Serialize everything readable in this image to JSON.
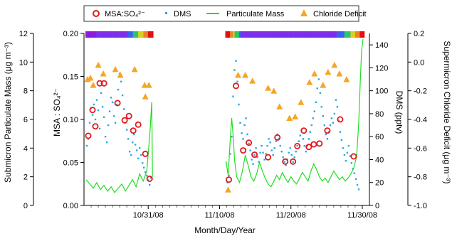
{
  "chart_data": {
    "type": "scatter",
    "xlabel": "Month/Day/Year",
    "x_ticks": [
      {
        "label": "10/31/08",
        "day": 31
      },
      {
        "label": "11/10/08",
        "day": 41
      },
      {
        "label": "11/20/08",
        "day": 51
      },
      {
        "label": "11/30/08",
        "day": 61
      }
    ],
    "x_range_days": [
      22,
      62
    ],
    "axes": {
      "left1": {
        "label": "Submicron Particulate Mass (μg m⁻³)",
        "range": [
          0,
          12
        ],
        "ticks": [
          "0",
          "2",
          "4",
          "6",
          "8",
          "10",
          "12"
        ]
      },
      "left2": {
        "label": "MSA : SO₄²⁻",
        "range": [
          0,
          0.2
        ],
        "ticks": [
          "0.00",
          "0.05",
          "0.10",
          "0.15",
          "0.20"
        ]
      },
      "right1": {
        "label": "DMS (pptv)",
        "range": [
          0,
          150
        ],
        "ticks": [
          "0",
          "20",
          "40",
          "60",
          "80",
          "100",
          "120",
          "140"
        ]
      },
      "right2": {
        "label": "Supermicron Chloride Deficit (μg m⁻³)",
        "range": [
          -1.0,
          0.2
        ],
        "ticks": [
          "-1.0",
          "-0.8",
          "-0.6",
          "-0.4",
          "-0.2",
          "0.0",
          "0.2"
        ]
      }
    },
    "legend": {
      "placement": "top",
      "entries": [
        {
          "label": "MSA:SO₄²⁻",
          "marker": "open-circle",
          "color": "#e0191c"
        },
        {
          "label": "DMS",
          "marker": "dot",
          "color": "#29a8e0"
        },
        {
          "label": "Particulate Mass",
          "marker": "line",
          "color": "#22dd22"
        },
        {
          "label": "Chloride Deficit",
          "marker": "triangle",
          "color": "#f5a623"
        }
      ]
    },
    "series": [
      {
        "name": "MSA:SO₄²⁻",
        "axis": "left2",
        "color": "#e0191c",
        "points": [
          [
            22.6,
            0.081
          ],
          [
            23.2,
            0.111
          ],
          [
            23.6,
            0.092
          ],
          [
            24.2,
            0.142
          ],
          [
            24.8,
            0.142
          ],
          [
            26.7,
            0.119
          ],
          [
            27.7,
            0.099
          ],
          [
            28.3,
            0.104
          ],
          [
            28.9,
            0.087
          ],
          [
            29.6,
            0.094
          ],
          [
            30.6,
            0.06
          ],
          [
            31.2,
            0.031
          ],
          [
            42.3,
            0.03
          ],
          [
            43.3,
            0.139
          ],
          [
            44.3,
            0.064
          ],
          [
            45.1,
            0.073
          ],
          [
            45.9,
            0.059
          ],
          [
            47.8,
            0.056
          ],
          [
            49.1,
            0.079
          ],
          [
            50.2,
            0.051
          ],
          [
            51.3,
            0.051
          ],
          [
            51.9,
            0.069
          ],
          [
            52.8,
            0.087
          ],
          [
            53.5,
            0.068
          ],
          [
            54.2,
            0.071
          ],
          [
            55.0,
            0.072
          ],
          [
            56.1,
            0.087
          ],
          [
            57.9,
            0.1
          ],
          [
            59.8,
            0.057
          ]
        ]
      },
      {
        "name": "Chloride Deficit",
        "axis": "right2",
        "color": "#f5a623",
        "points": [
          [
            22.5,
            -0.12
          ],
          [
            22.9,
            -0.11
          ],
          [
            23.3,
            -0.16
          ],
          [
            24.0,
            -0.02
          ],
          [
            24.7,
            -0.08
          ],
          [
            26.4,
            -0.05
          ],
          [
            27.1,
            -0.09
          ],
          [
            29.1,
            -0.05
          ],
          [
            30.5,
            -0.16
          ],
          [
            31.1,
            -0.16
          ],
          [
            30.6,
            -0.24
          ],
          [
            42.2,
            -0.89
          ],
          [
            43.6,
            -0.09
          ],
          [
            44.6,
            -0.09
          ],
          [
            45.6,
            -0.13
          ],
          [
            47.8,
            -0.18
          ],
          [
            48.6,
            -0.2
          ],
          [
            49.4,
            -0.31
          ],
          [
            50.8,
            -0.39
          ],
          [
            51.6,
            -0.38
          ],
          [
            52.4,
            -0.28
          ],
          [
            53.6,
            -0.14
          ],
          [
            54.3,
            -0.08
          ],
          [
            55.5,
            -0.16
          ],
          [
            56.2,
            -0.07
          ],
          [
            57.1,
            -0.02
          ],
          [
            57.8,
            -0.08
          ],
          [
            58.8,
            -0.12
          ]
        ]
      },
      {
        "name": "DMS",
        "axis": "right1",
        "color": "#29a8e0",
        "points": [
          [
            22.4,
            52
          ],
          [
            22.6,
            58
          ],
          [
            22.8,
            72
          ],
          [
            23.0,
            85
          ],
          [
            23.2,
            79
          ],
          [
            23.4,
            88
          ],
          [
            23.6,
            75
          ],
          [
            23.8,
            92
          ],
          [
            24.0,
            83
          ],
          [
            24.2,
            67
          ],
          [
            24.4,
            98
          ],
          [
            24.6,
            86
          ],
          [
            24.8,
            77
          ],
          [
            25.0,
            60
          ],
          [
            25.2,
            55
          ],
          [
            25.4,
            70
          ],
          [
            25.6,
            82
          ],
          [
            25.8,
            94
          ],
          [
            26.0,
            90
          ],
          [
            26.2,
            78
          ],
          [
            26.4,
            72
          ],
          [
            26.6,
            88
          ],
          [
            26.8,
            101
          ],
          [
            27.0,
            115
          ],
          [
            27.2,
            108
          ],
          [
            27.4,
            96
          ],
          [
            27.6,
            84
          ],
          [
            27.8,
            72
          ],
          [
            28.0,
            66
          ],
          [
            28.2,
            58
          ],
          [
            28.4,
            47
          ],
          [
            28.6,
            44
          ],
          [
            28.8,
            55
          ],
          [
            29.0,
            62
          ],
          [
            29.2,
            53
          ],
          [
            29.4,
            48
          ],
          [
            29.6,
            41
          ],
          [
            29.8,
            50
          ],
          [
            30.0,
            44
          ],
          [
            30.2,
            37
          ],
          [
            30.4,
            33
          ],
          [
            30.6,
            29
          ],
          [
            30.8,
            26
          ],
          [
            31.0,
            22
          ],
          [
            31.2,
            18
          ],
          [
            31.4,
            24
          ],
          [
            42.1,
            20
          ],
          [
            42.3,
            26
          ],
          [
            42.5,
            45
          ],
          [
            42.7,
            60
          ],
          [
            42.9,
            95
          ],
          [
            43.1,
            118
          ],
          [
            43.3,
            126
          ],
          [
            43.5,
            108
          ],
          [
            43.7,
            88
          ],
          [
            43.9,
            72
          ],
          [
            44.1,
            63
          ],
          [
            44.3,
            58
          ],
          [
            44.5,
            70
          ],
          [
            44.7,
            76
          ],
          [
            44.9,
            62
          ],
          [
            45.1,
            54
          ],
          [
            45.3,
            48
          ],
          [
            45.5,
            40
          ],
          [
            45.7,
            36
          ],
          [
            45.9,
            44
          ],
          [
            46.1,
            50
          ],
          [
            46.3,
            42
          ],
          [
            46.5,
            38
          ],
          [
            46.7,
            46
          ],
          [
            46.9,
            52
          ],
          [
            47.1,
            46
          ],
          [
            47.3,
            40
          ],
          [
            47.5,
            45
          ],
          [
            47.7,
            52
          ],
          [
            47.9,
            58
          ],
          [
            48.1,
            55
          ],
          [
            48.3,
            48
          ],
          [
            48.5,
            44
          ],
          [
            48.7,
            50
          ],
          [
            48.9,
            56
          ],
          [
            49.1,
            62
          ],
          [
            49.3,
            58
          ],
          [
            49.5,
            52
          ],
          [
            49.7,
            47
          ],
          [
            49.9,
            42
          ],
          [
            50.1,
            38
          ],
          [
            50.3,
            35
          ],
          [
            50.5,
            40
          ],
          [
            50.7,
            46
          ],
          [
            50.9,
            50
          ],
          [
            51.1,
            44
          ],
          [
            51.3,
            38
          ],
          [
            51.5,
            42
          ],
          [
            51.7,
            47
          ],
          [
            51.9,
            52
          ],
          [
            52.1,
            56
          ],
          [
            52.3,
            61
          ],
          [
            52.5,
            66
          ],
          [
            52.7,
            58
          ],
          [
            52.9,
            52
          ],
          [
            53.1,
            47
          ],
          [
            53.3,
            52
          ],
          [
            53.5,
            58
          ],
          [
            53.7,
            64
          ],
          [
            53.9,
            70
          ],
          [
            54.1,
            76
          ],
          [
            54.3,
            82
          ],
          [
            54.5,
            90
          ],
          [
            54.7,
            102
          ],
          [
            54.9,
            110
          ],
          [
            55.1,
            98
          ],
          [
            55.3,
            86
          ],
          [
            55.5,
            78
          ],
          [
            55.7,
            70
          ],
          [
            55.9,
            62
          ],
          [
            56.1,
            58
          ],
          [
            56.3,
            64
          ],
          [
            56.5,
            70
          ],
          [
            56.7,
            76
          ],
          [
            56.9,
            72
          ],
          [
            57.1,
            80
          ],
          [
            57.3,
            92
          ],
          [
            57.5,
            86
          ],
          [
            57.7,
            74
          ],
          [
            57.9,
            64
          ],
          [
            58.1,
            57
          ],
          [
            58.3,
            50
          ],
          [
            58.5,
            44
          ],
          [
            58.7,
            39
          ],
          [
            58.9,
            46
          ],
          [
            59.1,
            52
          ],
          [
            59.3,
            43
          ],
          [
            59.5,
            37
          ],
          [
            59.7,
            32
          ],
          [
            59.9,
            28
          ],
          [
            60.1,
            23
          ],
          [
            60.3,
            18
          ],
          [
            60.5,
            14
          ]
        ]
      },
      {
        "name": "Particulate Mass",
        "axis": "left1",
        "color": "#22dd22",
        "segments": [
          [
            [
              22.3,
              1.8
            ],
            [
              22.8,
              1.5
            ],
            [
              23.3,
              1.2
            ],
            [
              23.8,
              1.6
            ],
            [
              24.3,
              1.1
            ],
            [
              24.8,
              1.4
            ],
            [
              25.3,
              1.0
            ],
            [
              25.8,
              1.3
            ],
            [
              26.3,
              0.9
            ],
            [
              26.8,
              1.2
            ],
            [
              27.3,
              1.5
            ],
            [
              27.8,
              1.0
            ],
            [
              28.3,
              1.4
            ],
            [
              28.8,
              1.8
            ],
            [
              29.3,
              1.3
            ],
            [
              29.8,
              2.2
            ],
            [
              30.3,
              1.7
            ],
            [
              30.8,
              2.4
            ],
            [
              31.1,
              4.2
            ],
            [
              31.3,
              5.5
            ],
            [
              31.5,
              7.2
            ],
            [
              31.6,
              2.0
            ]
          ],
          [
            [
              41.9,
              3.1
            ],
            [
              42.2,
              2.1
            ],
            [
              42.5,
              4.6
            ],
            [
              42.7,
              6.1
            ],
            [
              42.9,
              4.9
            ],
            [
              43.1,
              3.2
            ],
            [
              43.4,
              2.0
            ],
            [
              43.8,
              1.6
            ],
            [
              44.2,
              2.4
            ],
            [
              44.6,
              3.5
            ],
            [
              45.0,
              2.8
            ],
            [
              45.4,
              2.0
            ],
            [
              45.8,
              1.7
            ],
            [
              46.2,
              2.2
            ],
            [
              46.6,
              3.0
            ],
            [
              47.0,
              2.4
            ],
            [
              47.4,
              1.9
            ],
            [
              47.8,
              1.5
            ],
            [
              48.2,
              1.3
            ],
            [
              48.6,
              1.7
            ],
            [
              49.0,
              2.1
            ],
            [
              49.4,
              1.8
            ],
            [
              49.8,
              2.3
            ],
            [
              50.2,
              1.9
            ],
            [
              50.6,
              1.6
            ],
            [
              51.0,
              2.0
            ],
            [
              51.4,
              1.7
            ],
            [
              51.8,
              1.5
            ],
            [
              52.2,
              1.9
            ],
            [
              52.6,
              2.3
            ],
            [
              53.0,
              2.0
            ],
            [
              53.4,
              1.7
            ],
            [
              53.8,
              2.4
            ],
            [
              54.2,
              2.9
            ],
            [
              54.6,
              2.5
            ],
            [
              55.0,
              2.0
            ],
            [
              55.4,
              1.7
            ],
            [
              55.8,
              1.9
            ],
            [
              56.2,
              1.6
            ],
            [
              56.6,
              2.0
            ],
            [
              57.0,
              2.4
            ],
            [
              57.4,
              2.1
            ],
            [
              57.8,
              1.8
            ],
            [
              58.2,
              2.0
            ],
            [
              58.6,
              1.7
            ],
            [
              59.0,
              1.9
            ],
            [
              59.4,
              2.2
            ],
            [
              59.8,
              2.6
            ],
            [
              60.2,
              3.4
            ],
            [
              60.5,
              5.8
            ],
            [
              60.7,
              8.5
            ],
            [
              60.9,
              10.8
            ],
            [
              61.1,
              11.6
            ]
          ]
        ]
      }
    ]
  }
}
